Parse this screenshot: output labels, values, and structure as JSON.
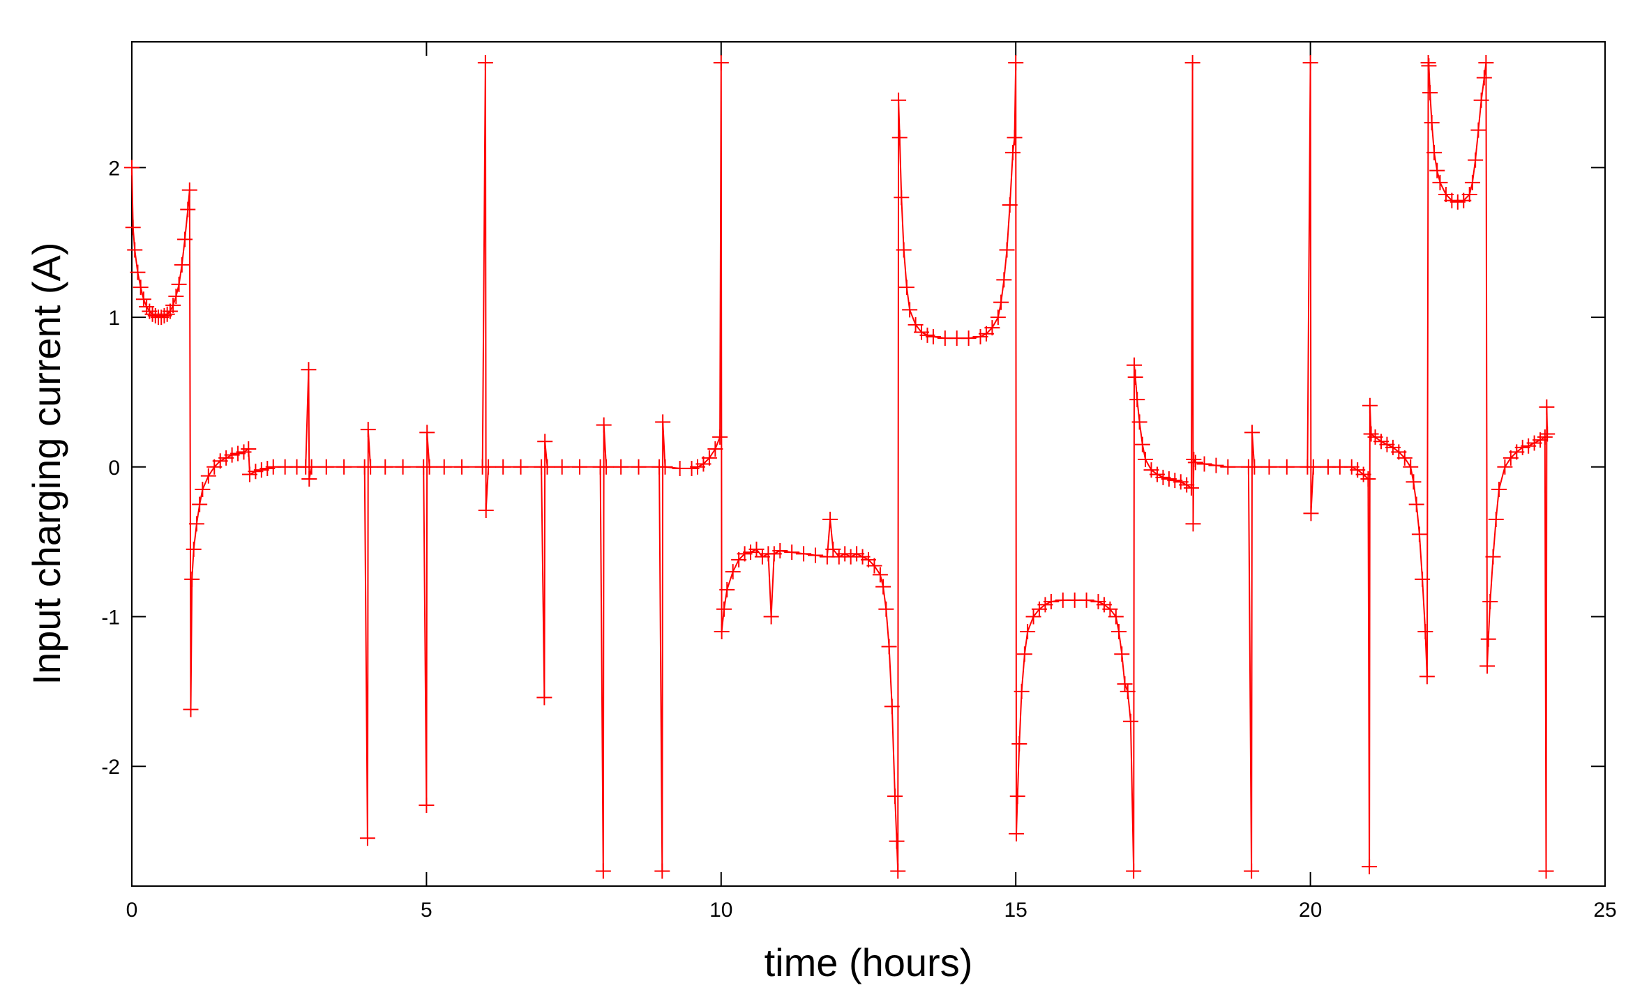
{
  "chart_data": {
    "type": "line",
    "title": "",
    "xlabel": "time (hours)",
    "ylabel": "Input charging current (A)",
    "xlim": [
      0,
      25
    ],
    "ylim": [
      -2.8,
      2.84
    ],
    "xticks": [
      0,
      5,
      10,
      15,
      20,
      25
    ],
    "yticks": [
      -2,
      -1,
      0,
      1,
      2
    ],
    "grid": false,
    "legend": "none",
    "series_color": "#ff0000",
    "marker": "plus",
    "series": [
      {
        "name": "",
        "points": [
          [
            0.0,
            2.0
          ],
          [
            0.02,
            1.6
          ],
          [
            0.05,
            1.45
          ],
          [
            0.1,
            1.3
          ],
          [
            0.15,
            1.2
          ],
          [
            0.2,
            1.12
          ],
          [
            0.25,
            1.07
          ],
          [
            0.3,
            1.04
          ],
          [
            0.35,
            1.02
          ],
          [
            0.4,
            1.01
          ],
          [
            0.45,
            1.0
          ],
          [
            0.5,
            1.0
          ],
          [
            0.55,
            1.01
          ],
          [
            0.6,
            1.02
          ],
          [
            0.65,
            1.04
          ],
          [
            0.7,
            1.08
          ],
          [
            0.75,
            1.14
          ],
          [
            0.8,
            1.22
          ],
          [
            0.85,
            1.35
          ],
          [
            0.9,
            1.52
          ],
          [
            0.95,
            1.72
          ],
          [
            0.98,
            1.85
          ],
          [
            1.0,
            -1.62
          ],
          [
            1.02,
            -0.75
          ],
          [
            1.05,
            -0.55
          ],
          [
            1.1,
            -0.38
          ],
          [
            1.15,
            -0.25
          ],
          [
            1.2,
            -0.15
          ],
          [
            1.3,
            -0.06
          ],
          [
            1.4,
            0.0
          ],
          [
            1.5,
            0.04
          ],
          [
            1.6,
            0.06
          ],
          [
            1.7,
            0.08
          ],
          [
            1.8,
            0.09
          ],
          [
            1.9,
            0.1
          ],
          [
            1.98,
            0.12
          ],
          [
            2.0,
            -0.05
          ],
          [
            2.1,
            -0.03
          ],
          [
            2.2,
            -0.02
          ],
          [
            2.3,
            -0.01
          ],
          [
            2.4,
            0.0
          ],
          [
            2.6,
            0.0
          ],
          [
            2.8,
            0.0
          ],
          [
            2.95,
            0.0
          ],
          [
            3.0,
            0.65
          ],
          [
            3.01,
            -0.08
          ],
          [
            3.05,
            0.0
          ],
          [
            3.3,
            0.0
          ],
          [
            3.6,
            0.0
          ],
          [
            3.95,
            0.0
          ],
          [
            4.0,
            -2.48
          ],
          [
            4.01,
            0.25
          ],
          [
            4.05,
            0.0
          ],
          [
            4.3,
            0.0
          ],
          [
            4.6,
            0.0
          ],
          [
            4.95,
            0.0
          ],
          [
            5.0,
            -2.26
          ],
          [
            5.01,
            0.23
          ],
          [
            5.05,
            0.0
          ],
          [
            5.3,
            0.0
          ],
          [
            5.6,
            0.0
          ],
          [
            5.95,
            0.0
          ],
          [
            6.0,
            2.7
          ],
          [
            6.01,
            -0.29
          ],
          [
            6.05,
            0.0
          ],
          [
            6.3,
            0.0
          ],
          [
            6.6,
            0.0
          ],
          [
            6.95,
            0.0
          ],
          [
            7.0,
            -1.54
          ],
          [
            7.01,
            0.17
          ],
          [
            7.05,
            0.0
          ],
          [
            7.3,
            0.0
          ],
          [
            7.6,
            0.0
          ],
          [
            7.95,
            0.0
          ],
          [
            8.0,
            -2.7
          ],
          [
            8.01,
            0.28
          ],
          [
            8.05,
            0.0
          ],
          [
            8.3,
            0.0
          ],
          [
            8.6,
            0.0
          ],
          [
            8.95,
            0.0
          ],
          [
            9.0,
            -2.7
          ],
          [
            9.01,
            0.3
          ],
          [
            9.05,
            0.0
          ],
          [
            9.3,
            -0.01
          ],
          [
            9.5,
            -0.01
          ],
          [
            9.6,
            0.0
          ],
          [
            9.7,
            0.02
          ],
          [
            9.8,
            0.06
          ],
          [
            9.9,
            0.12
          ],
          [
            9.98,
            0.2
          ],
          [
            10.0,
            2.7
          ],
          [
            10.01,
            -1.1
          ],
          [
            10.05,
            -0.95
          ],
          [
            10.1,
            -0.82
          ],
          [
            10.2,
            -0.7
          ],
          [
            10.3,
            -0.62
          ],
          [
            10.4,
            -0.58
          ],
          [
            10.5,
            -0.57
          ],
          [
            10.6,
            -0.55
          ],
          [
            10.7,
            -0.6
          ],
          [
            10.8,
            -0.58
          ],
          [
            10.85,
            -1.0
          ],
          [
            10.9,
            -0.58
          ],
          [
            11.0,
            -0.56
          ],
          [
            11.2,
            -0.57
          ],
          [
            11.4,
            -0.58
          ],
          [
            11.6,
            -0.59
          ],
          [
            11.8,
            -0.6
          ],
          [
            11.85,
            -0.35
          ],
          [
            11.9,
            -0.55
          ],
          [
            12.0,
            -0.6
          ],
          [
            12.1,
            -0.58
          ],
          [
            12.2,
            -0.6
          ],
          [
            12.3,
            -0.58
          ],
          [
            12.4,
            -0.6
          ],
          [
            12.5,
            -0.62
          ],
          [
            12.6,
            -0.66
          ],
          [
            12.7,
            -0.72
          ],
          [
            12.75,
            -0.8
          ],
          [
            12.8,
            -0.95
          ],
          [
            12.85,
            -1.2
          ],
          [
            12.9,
            -1.6
          ],
          [
            12.95,
            -2.2
          ],
          [
            12.98,
            -2.5
          ],
          [
            13.0,
            -2.7
          ],
          [
            13.01,
            2.45
          ],
          [
            13.03,
            2.2
          ],
          [
            13.06,
            1.8
          ],
          [
            13.1,
            1.45
          ],
          [
            13.15,
            1.2
          ],
          [
            13.2,
            1.05
          ],
          [
            13.3,
            0.95
          ],
          [
            13.4,
            0.9
          ],
          [
            13.5,
            0.88
          ],
          [
            13.6,
            0.87
          ],
          [
            13.8,
            0.86
          ],
          [
            14.0,
            0.86
          ],
          [
            14.2,
            0.86
          ],
          [
            14.4,
            0.87
          ],
          [
            14.5,
            0.89
          ],
          [
            14.6,
            0.93
          ],
          [
            14.7,
            1.0
          ],
          [
            14.75,
            1.1
          ],
          [
            14.8,
            1.25
          ],
          [
            14.85,
            1.45
          ],
          [
            14.9,
            1.75
          ],
          [
            14.95,
            2.1
          ],
          [
            14.98,
            2.2
          ],
          [
            15.0,
            2.7
          ],
          [
            15.01,
            -2.45
          ],
          [
            15.03,
            -2.2
          ],
          [
            15.06,
            -1.85
          ],
          [
            15.1,
            -1.5
          ],
          [
            15.15,
            -1.25
          ],
          [
            15.2,
            -1.1
          ],
          [
            15.3,
            -1.0
          ],
          [
            15.4,
            -0.95
          ],
          [
            15.5,
            -0.92
          ],
          [
            15.6,
            -0.9
          ],
          [
            15.8,
            -0.89
          ],
          [
            16.0,
            -0.89
          ],
          [
            16.2,
            -0.89
          ],
          [
            16.4,
            -0.9
          ],
          [
            16.5,
            -0.92
          ],
          [
            16.6,
            -0.95
          ],
          [
            16.7,
            -1.0
          ],
          [
            16.75,
            -1.1
          ],
          [
            16.8,
            -1.25
          ],
          [
            16.85,
            -1.45
          ],
          [
            16.9,
            -1.5
          ],
          [
            16.95,
            -1.7
          ],
          [
            17.0,
            -2.7
          ],
          [
            17.01,
            0.68
          ],
          [
            17.03,
            0.6
          ],
          [
            17.06,
            0.45
          ],
          [
            17.1,
            0.3
          ],
          [
            17.15,
            0.15
          ],
          [
            17.2,
            0.05
          ],
          [
            17.3,
            -0.02
          ],
          [
            17.4,
            -0.05
          ],
          [
            17.5,
            -0.07
          ],
          [
            17.6,
            -0.08
          ],
          [
            17.7,
            -0.09
          ],
          [
            17.8,
            -0.1
          ],
          [
            17.9,
            -0.12
          ],
          [
            17.98,
            -0.14
          ],
          [
            18.0,
            2.7
          ],
          [
            18.01,
            -0.38
          ],
          [
            18.02,
            0.05
          ],
          [
            18.05,
            0.03
          ],
          [
            18.2,
            0.02
          ],
          [
            18.4,
            0.01
          ],
          [
            18.6,
            0.0
          ],
          [
            18.95,
            0.0
          ],
          [
            19.0,
            -2.7
          ],
          [
            19.01,
            0.23
          ],
          [
            19.05,
            0.0
          ],
          [
            19.3,
            0.0
          ],
          [
            19.6,
            0.0
          ],
          [
            19.95,
            0.0
          ],
          [
            20.0,
            2.7
          ],
          [
            20.01,
            -0.31
          ],
          [
            20.05,
            0.0
          ],
          [
            20.3,
            0.0
          ],
          [
            20.5,
            0.0
          ],
          [
            20.7,
            0.0
          ],
          [
            20.8,
            -0.02
          ],
          [
            20.9,
            -0.05
          ],
          [
            20.98,
            -0.08
          ],
          [
            21.0,
            -2.67
          ],
          [
            21.01,
            0.41
          ],
          [
            21.03,
            0.22
          ],
          [
            21.1,
            0.2
          ],
          [
            21.2,
            0.17
          ],
          [
            21.3,
            0.15
          ],
          [
            21.4,
            0.13
          ],
          [
            21.5,
            0.1
          ],
          [
            21.6,
            0.06
          ],
          [
            21.7,
            0.0
          ],
          [
            21.75,
            -0.1
          ],
          [
            21.8,
            -0.25
          ],
          [
            21.85,
            -0.45
          ],
          [
            21.9,
            -0.75
          ],
          [
            21.95,
            -1.1
          ],
          [
            21.98,
            -1.4
          ],
          [
            22.0,
            2.7
          ],
          [
            22.01,
            2.68
          ],
          [
            22.03,
            2.5
          ],
          [
            22.06,
            2.3
          ],
          [
            22.1,
            2.1
          ],
          [
            22.15,
            1.98
          ],
          [
            22.2,
            1.9
          ],
          [
            22.3,
            1.82
          ],
          [
            22.4,
            1.78
          ],
          [
            22.5,
            1.77
          ],
          [
            22.6,
            1.78
          ],
          [
            22.7,
            1.82
          ],
          [
            22.75,
            1.9
          ],
          [
            22.8,
            2.05
          ],
          [
            22.85,
            2.25
          ],
          [
            22.9,
            2.45
          ],
          [
            22.95,
            2.6
          ],
          [
            22.98,
            2.7
          ],
          [
            23.0,
            -1.33
          ],
          [
            23.02,
            -1.15
          ],
          [
            23.05,
            -0.9
          ],
          [
            23.1,
            -0.6
          ],
          [
            23.15,
            -0.35
          ],
          [
            23.2,
            -0.15
          ],
          [
            23.3,
            0.0
          ],
          [
            23.4,
            0.06
          ],
          [
            23.5,
            0.1
          ],
          [
            23.6,
            0.13
          ],
          [
            23.7,
            0.14
          ],
          [
            23.8,
            0.16
          ],
          [
            23.9,
            0.18
          ],
          [
            23.98,
            0.2
          ],
          [
            24.0,
            -2.7
          ],
          [
            24.01,
            0.4
          ],
          [
            24.02,
            0.22
          ]
        ]
      }
    ]
  }
}
